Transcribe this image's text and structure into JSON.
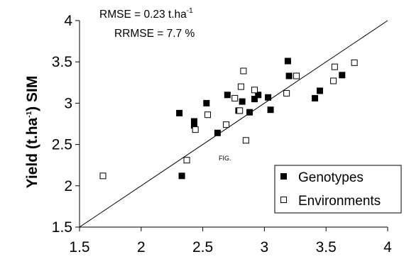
{
  "chart_data": {
    "type": "scatter",
    "ylabel_parts": [
      "Yield (t.ha",
      "-1",
      ") SIM"
    ],
    "x_ticks": [
      "1.5",
      "2",
      "2.5",
      "3",
      "3.5",
      "4"
    ],
    "y_ticks": [
      "1.5",
      "2",
      "2.5",
      "3",
      "3.5",
      "4"
    ],
    "xlim": [
      1.5,
      4
    ],
    "ylim": [
      1.5,
      4
    ],
    "grid": false,
    "legend_position": "bottom-right",
    "annotations": {
      "rmse_text": "RMSE = 0.23 t.ha",
      "rmse_sup": "-1",
      "rrmse": "RRMSE = 7.7 %",
      "fig_label": "FIG."
    },
    "reference_line": {
      "type": "1:1",
      "from": [
        1.5,
        1.5
      ],
      "to": [
        4,
        4
      ]
    },
    "series": [
      {
        "name": "Genotypes",
        "marker": "filled-square",
        "color": "#000000",
        "points": [
          [
            2.31,
            2.88
          ],
          [
            2.33,
            2.12
          ],
          [
            2.43,
            2.78
          ],
          [
            2.43,
            2.73
          ],
          [
            2.53,
            3.0
          ],
          [
            2.62,
            2.64
          ],
          [
            2.7,
            3.1
          ],
          [
            2.79,
            2.91
          ],
          [
            2.82,
            3.02
          ],
          [
            2.88,
            2.89
          ],
          [
            2.92,
            3.05
          ],
          [
            2.95,
            3.1
          ],
          [
            3.03,
            3.07
          ],
          [
            3.05,
            2.92
          ],
          [
            3.19,
            3.51
          ],
          [
            3.2,
            3.33
          ],
          [
            3.41,
            3.06
          ],
          [
            3.45,
            3.15
          ],
          [
            3.63,
            3.34
          ]
        ]
      },
      {
        "name": "Environments",
        "marker": "open-square",
        "color": "#000000",
        "points": [
          [
            1.69,
            2.12
          ],
          [
            2.37,
            2.31
          ],
          [
            2.44,
            2.68
          ],
          [
            2.54,
            2.86
          ],
          [
            2.69,
            2.74
          ],
          [
            2.76,
            3.06
          ],
          [
            2.8,
            2.91
          ],
          [
            2.81,
            3.2
          ],
          [
            2.83,
            3.39
          ],
          [
            2.85,
            2.55
          ],
          [
            2.92,
            3.16
          ],
          [
            3.18,
            3.12
          ],
          [
            3.26,
            3.33
          ],
          [
            3.56,
            3.27
          ],
          [
            3.57,
            3.44
          ],
          [
            3.73,
            3.49
          ]
        ]
      }
    ]
  }
}
